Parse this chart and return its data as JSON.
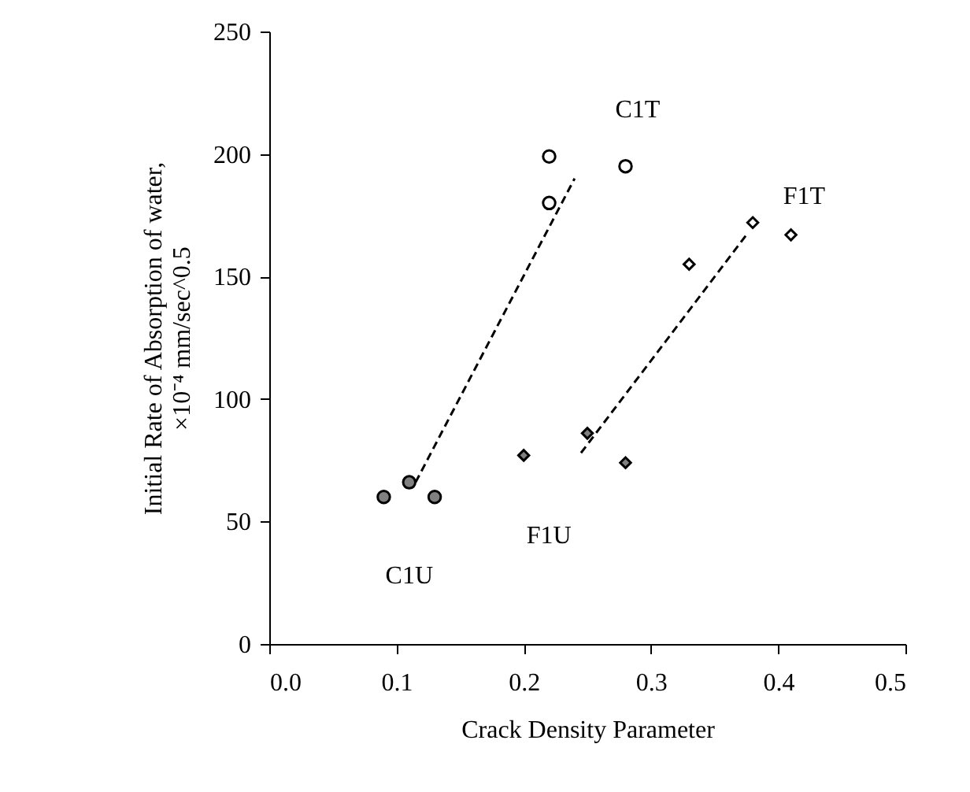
{
  "chart_data": {
    "type": "scatter",
    "xlabel": "Crack Density Parameter",
    "ylabel": "Initial Rate of Absorption of water,\n×10⁻⁴ mm/sec^0.5",
    "xlim": [
      0.0,
      0.5
    ],
    "xticks": [
      {
        "value": 0,
        "label": "0.0"
      },
      0.1,
      0.2,
      0.3,
      0.4,
      0.5
    ],
    "ylim": [
      0,
      250
    ],
    "yticks": [
      0,
      50,
      100,
      150,
      200,
      250
    ],
    "grid": false,
    "legend": false,
    "series": [
      {
        "name": "C1U",
        "marker": "circle",
        "color": "#808080",
        "x": [
          0.09,
          0.11,
          0.13
        ],
        "values": [
          60,
          66,
          60
        ]
      },
      {
        "name": "C1T",
        "marker": "circle",
        "color": "#ffffff",
        "x": [
          0.22,
          0.22,
          0.28
        ],
        "values": [
          199,
          180,
          195
        ]
      },
      {
        "name": "F1U",
        "marker": "diamond",
        "color": "#808080",
        "x": [
          0.2,
          0.25,
          0.28
        ],
        "values": [
          77,
          86,
          74
        ]
      },
      {
        "name": "F1T",
        "marker": "diamond",
        "color": "#ffffff",
        "x": [
          0.33,
          0.38,
          0.41
        ],
        "values": [
          155,
          172,
          167
        ]
      },
      {
        "type": "line",
        "line_style": "dashed",
        "color": "#000000",
        "x": [
          0.115,
          0.24
        ],
        "values": [
          66,
          190
        ]
      },
      {
        "type": "line",
        "line_style": "dashed",
        "color": "#000000",
        "x": [
          0.245,
          0.375
        ],
        "values": [
          78,
          167
        ]
      }
    ]
  }
}
